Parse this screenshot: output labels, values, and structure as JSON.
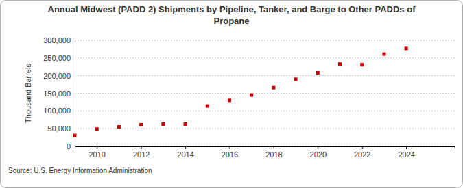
{
  "chart_data": {
    "type": "scatter",
    "title": "Annual Midwest (PADD 2) Shipments by Pipeline, Tanker, and Barge to Other PADDs of Propane",
    "y_label": "Thousand Barrels",
    "source": "Source: U.S. Energy Information Administration",
    "x": [
      2009,
      2010,
      2011,
      2012,
      2013,
      2014,
      2015,
      2016,
      2017,
      2018,
      2019,
      2020,
      2021,
      2022,
      2023,
      2024
    ],
    "values": [
      31000,
      49000,
      55000,
      61000,
      63000,
      63000,
      114000,
      130000,
      145000,
      166000,
      190000,
      208000,
      233000,
      231000,
      261000,
      277000
    ],
    "color": "#cc0000",
    "marker": "square",
    "xlim": [
      2009,
      2026.2
    ],
    "xticks": [
      2010,
      2012,
      2014,
      2016,
      2018,
      2020,
      2022,
      2024
    ],
    "ylim": [
      0,
      300000
    ],
    "yticks": [
      0,
      {
        "value": 50000,
        "label": "50,000"
      },
      {
        "value": 100000,
        "label": "100,000"
      },
      {
        "value": 150000,
        "label": "150,000"
      },
      {
        "value": 200000,
        "label": "200,000"
      },
      {
        "value": 250000,
        "label": "250,000"
      },
      {
        "value": 300000,
        "label": "300,000"
      }
    ],
    "grid": true
  }
}
